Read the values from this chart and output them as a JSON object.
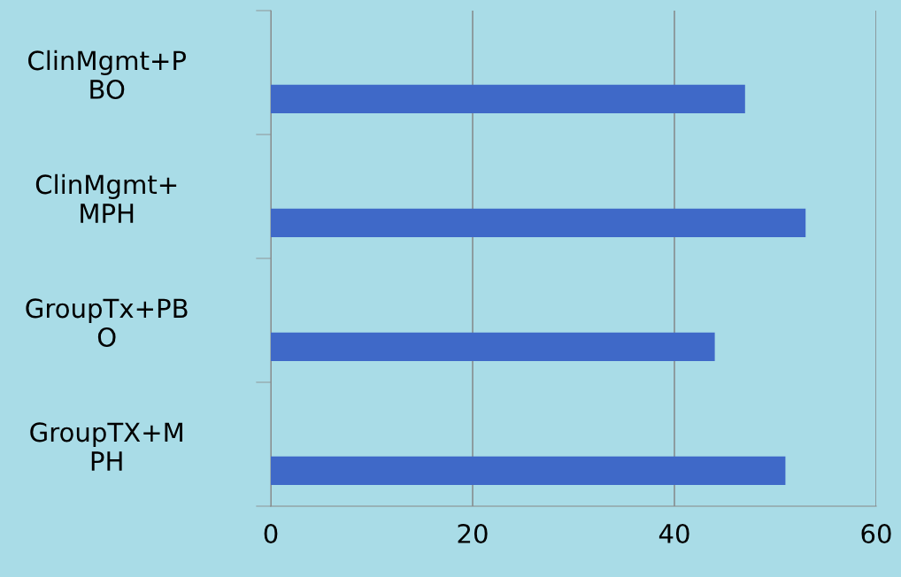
{
  "chart_data": {
    "type": "bar",
    "orientation": "horizontal",
    "categories": [
      "ClinMgmt+P\nBO",
      "ClinMgmt+\nMPH",
      "GroupTx+PB\nO",
      "GroupTX+M\nPH"
    ],
    "values": [
      47,
      53,
      44,
      51
    ],
    "color": "#3f69c8",
    "xlim": [
      0,
      60
    ],
    "xticks": [
      0,
      20,
      40,
      60
    ],
    "grid": "x",
    "legend": false
  }
}
